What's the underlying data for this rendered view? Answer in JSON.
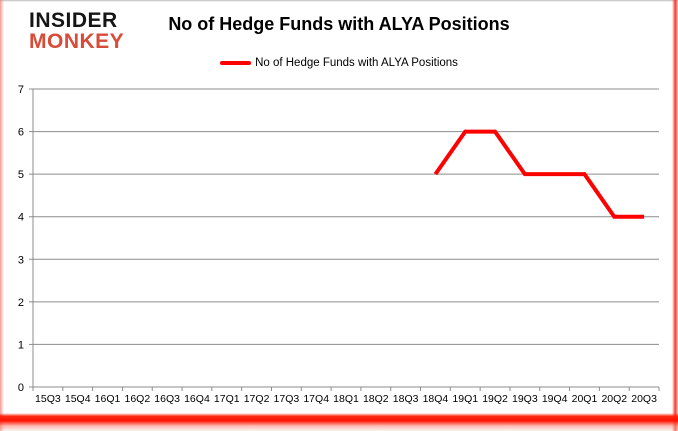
{
  "logo": {
    "line1": "INSIDER",
    "line2": "MONKEY"
  },
  "title": "No of Hedge Funds with ALYA Positions",
  "legend": {
    "label": "No of Hedge Funds with ALYA Positions",
    "marker_color": "#ff0000"
  },
  "colors": {
    "series": "#ff0000",
    "grid": "#8c8c8c",
    "axis": "#8c8c8c",
    "tick_text": "#000000",
    "logo_black": "#151515",
    "logo_red": "#d84b38",
    "glow": "#fc1200",
    "background": "#ffffff"
  },
  "chart_data": {
    "type": "line",
    "title": "No of Hedge Funds with ALYA Positions",
    "xlabel": "",
    "ylabel": "",
    "categories": [
      "15Q3",
      "15Q4",
      "16Q1",
      "16Q2",
      "16Q3",
      "16Q4",
      "17Q1",
      "17Q2",
      "17Q3",
      "17Q4",
      "18Q1",
      "18Q2",
      "18Q3",
      "18Q4",
      "19Q1",
      "19Q2",
      "19Q3",
      "19Q4",
      "20Q1",
      "20Q2",
      "20Q3"
    ],
    "series": [
      {
        "name": "No of Hedge Funds with ALYA Positions",
        "color": "#ff0000",
        "values": [
          null,
          null,
          null,
          null,
          null,
          null,
          null,
          null,
          null,
          null,
          null,
          null,
          null,
          5,
          6,
          6,
          5,
          5,
          5,
          4,
          4
        ]
      }
    ],
    "ylim": [
      0,
      7
    ],
    "yticks": [
      0,
      1,
      2,
      3,
      4,
      5,
      6,
      7
    ],
    "grid": true,
    "legend_position": "top-center"
  }
}
